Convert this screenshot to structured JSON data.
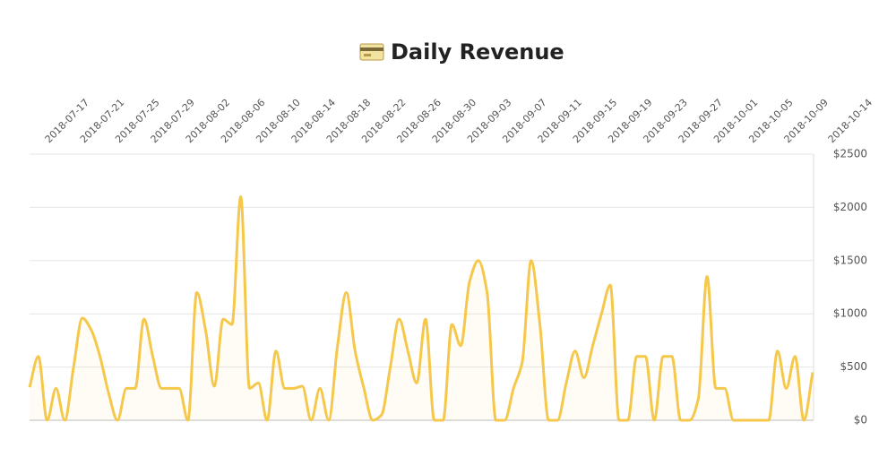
{
  "chart_data": {
    "type": "line",
    "title": "Daily Revenue",
    "x": [
      "2018-07-15",
      "2018-07-16",
      "2018-07-17",
      "2018-07-18",
      "2018-07-19",
      "2018-07-20",
      "2018-07-21",
      "2018-07-22",
      "2018-07-23",
      "2018-07-24",
      "2018-07-25",
      "2018-07-26",
      "2018-07-27",
      "2018-07-28",
      "2018-07-29",
      "2018-07-30",
      "2018-07-31",
      "2018-08-01",
      "2018-08-02",
      "2018-08-03",
      "2018-08-04",
      "2018-08-05",
      "2018-08-06",
      "2018-08-07",
      "2018-08-08",
      "2018-08-09",
      "2018-08-10",
      "2018-08-11",
      "2018-08-12",
      "2018-08-13",
      "2018-08-14",
      "2018-08-15",
      "2018-08-16",
      "2018-08-17",
      "2018-08-18",
      "2018-08-19",
      "2018-08-20",
      "2018-08-21",
      "2018-08-22",
      "2018-08-23",
      "2018-08-24",
      "2018-08-25",
      "2018-08-26",
      "2018-08-27",
      "2018-08-28",
      "2018-08-29",
      "2018-08-30",
      "2018-08-31",
      "2018-09-01",
      "2018-09-02",
      "2018-09-03",
      "2018-09-04",
      "2018-09-05",
      "2018-09-06",
      "2018-09-07",
      "2018-09-08",
      "2018-09-09",
      "2018-09-10",
      "2018-09-11",
      "2018-09-12",
      "2018-09-13",
      "2018-09-14",
      "2018-09-15",
      "2018-09-16",
      "2018-09-17",
      "2018-09-18",
      "2018-09-19",
      "2018-09-20",
      "2018-09-21",
      "2018-09-22",
      "2018-09-23",
      "2018-09-24",
      "2018-09-25",
      "2018-09-26",
      "2018-09-27",
      "2018-09-28",
      "2018-09-29",
      "2018-09-30",
      "2018-10-01",
      "2018-10-02",
      "2018-10-03",
      "2018-10-04",
      "2018-10-05",
      "2018-10-06",
      "2018-10-07",
      "2018-10-08",
      "2018-10-09",
      "2018-10-10",
      "2018-10-11",
      "2018-10-12"
    ],
    "series": [
      {
        "name": "Revenue",
        "color": "#f5c84c",
        "values": [
          310,
          600,
          0,
          300,
          0,
          500,
          960,
          850,
          600,
          250,
          0,
          300,
          300,
          950,
          600,
          300,
          300,
          300,
          0,
          1200,
          850,
          320,
          950,
          900,
          2100,
          300,
          350,
          0,
          650,
          300,
          300,
          320,
          0,
          300,
          0,
          700,
          1200,
          650,
          300,
          0,
          50,
          500,
          950,
          650,
          350,
          950,
          0,
          0,
          900,
          700,
          1300,
          1500,
          1200,
          0,
          0,
          300,
          550,
          1500,
          900,
          0,
          0,
          350,
          650,
          400,
          700,
          1000,
          1270,
          0,
          0,
          600,
          600,
          0,
          600,
          600,
          0,
          0,
          200,
          1350,
          300,
          300,
          0,
          0,
          0,
          0,
          0,
          650,
          300,
          600,
          0,
          450
        ]
      }
    ],
    "xticks": [
      "2018-07-17",
      "2018-07-21",
      "2018-07-25",
      "2018-07-29",
      "2018-08-02",
      "2018-08-06",
      "2018-08-10",
      "2018-08-14",
      "2018-08-18",
      "2018-08-22",
      "2018-08-26",
      "2018-08-30",
      "2018-09-03",
      "2018-09-07",
      "2018-09-11",
      "2018-09-15",
      "2018-09-19",
      "2018-09-23",
      "2018-09-27",
      "2018-10-01",
      "2018-10-05",
      "2018-10-09",
      "2018-10-14"
    ],
    "ylim": [
      0,
      2500
    ],
    "yticks": [
      {
        "value": 0,
        "label": "$0"
      },
      {
        "value": 500,
        "label": "$500"
      },
      {
        "value": 1000,
        "label": "$1000"
      },
      {
        "value": 1500,
        "label": "$1500"
      },
      {
        "value": 2000,
        "label": "$2000"
      },
      {
        "value": 2500,
        "label": "$2500"
      }
    ],
    "grid": true
  }
}
